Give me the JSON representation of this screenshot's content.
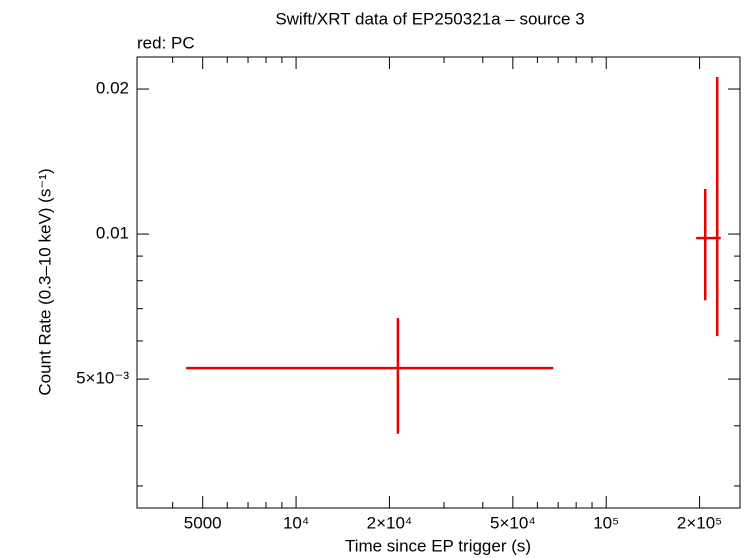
{
  "chart_data": {
    "type": "errorbar",
    "title": "Swift/XRT data of EP250321a – source 3",
    "subtitle": "red: PC",
    "xlabel": "Time since EP trigger (s)",
    "ylabel": "Count Rate (0.3–10 keV) (s⁻¹)",
    "xscale": "log",
    "yscale": "log",
    "xlim": [
      3070,
      270000
    ],
    "ylim": [
      0.0027,
      0.02331
    ],
    "xticks": [
      5000,
      {
        "value": 10000,
        "label": "10⁴"
      },
      {
        "value": 20000,
        "label": "2×10⁴"
      },
      {
        "value": 50000,
        "label": "5×10⁴"
      },
      {
        "value": 100000,
        "label": "10⁵"
      },
      {
        "value": 200000,
        "label": "2×10⁵"
      }
    ],
    "xticks_minor": [
      4000,
      6000,
      7000,
      8000,
      9000,
      30000,
      40000,
      60000,
      70000,
      80000,
      90000
    ],
    "yticks": [
      {
        "value": 0.005,
        "label": "5×10⁻³"
      },
      0.01,
      0.02
    ],
    "yticks_minor": [
      0.003,
      0.004,
      0.006,
      0.007,
      0.008,
      0.009
    ],
    "series": [
      {
        "name": "PC",
        "color": "#e60000",
        "x": [
          21300,
          208600,
          228000
        ],
        "x_min": [
          4420,
          195000,
          222000
        ],
        "x_max": [
          67500,
          222900,
          234000
        ],
        "y": [
          0.00527,
          0.00981,
          0.00981
        ],
        "y_min": [
          0.00385,
          0.00729,
          0.00614
        ],
        "y_max": [
          0.00669,
          0.0124,
          0.02119
        ]
      }
    ]
  }
}
